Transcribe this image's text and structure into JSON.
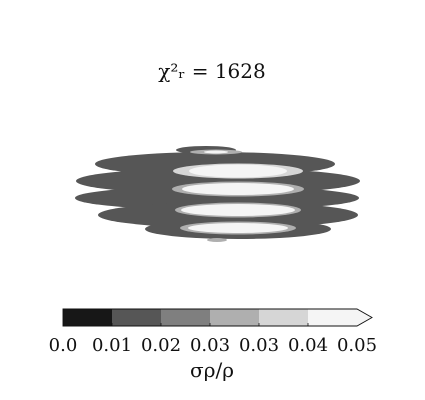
{
  "chart_data": {
    "type": "heatmap",
    "title": "χ²ᵣ = 1628",
    "colorbar": {
      "label": "σρ/ρ",
      "tick_labels": [
        "0.0",
        "0.01",
        "0.02",
        "0.03",
        "0.03",
        "0.04",
        "0.05"
      ],
      "bands": [
        {
          "lower": 0.0,
          "upper": 0.0083,
          "color": "#171717"
        },
        {
          "lower": 0.0083,
          "upper": 0.0167,
          "color": "#565656"
        },
        {
          "lower": 0.0167,
          "upper": 0.025,
          "color": "#7f7f7f"
        },
        {
          "lower": 0.025,
          "upper": 0.0333,
          "color": "#afafaf"
        },
        {
          "lower": 0.0333,
          "upper": 0.0417,
          "color": "#d6d6d6"
        },
        {
          "lower": 0.0417,
          "upper": 0.05,
          "color": "#f5f5f5"
        }
      ],
      "extend": "max"
    },
    "contour_field": {
      "background_level": 0.0125,
      "rows": [
        {
          "levels": [
            0.0125,
            0.03,
            0.045
          ]
        },
        {
          "levels": [
            0.0125,
            0.0375,
            0.045
          ]
        },
        {
          "levels": [
            0.0125,
            0.03,
            0.045
          ]
        },
        {
          "levels": [
            0.0125,
            0.03,
            0.045
          ]
        },
        {
          "levels": [
            0.0125,
            0.03,
            0.045
          ]
        },
        {
          "levels": [
            0.0125,
            0.03
          ]
        }
      ]
    },
    "axes_visible": false,
    "grid": false
  }
}
